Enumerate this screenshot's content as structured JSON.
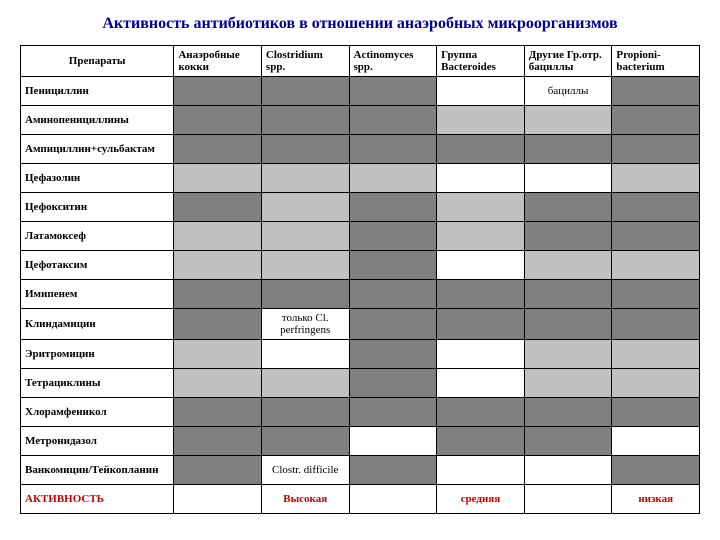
{
  "title": "Активность антибиотиков в отношении анаэробных микроорганизмов",
  "colors": {
    "dark": "#808080",
    "light": "#c0c0c0",
    "white": "#ffffff",
    "heading": "#000099",
    "activity": "#cc0000"
  },
  "columns": [
    "Препараты",
    "Анаэробные кокки",
    "Clostridium spp.",
    "Actinomyces spp.",
    "Группа Bacteroides",
    "Другие Гр.отр. бациллы",
    "Propioni-bacterium"
  ],
  "rows": [
    {
      "label": "Пенициллин",
      "cells": [
        {
          "c": "dark"
        },
        {
          "c": "dark"
        },
        {
          "c": "dark"
        },
        {
          "c": "white"
        },
        {
          "c": "white",
          "t": "бациллы"
        },
        {
          "c": "dark"
        }
      ]
    },
    {
      "label": "Аминопенициллины",
      "cells": [
        {
          "c": "dark"
        },
        {
          "c": "dark"
        },
        {
          "c": "dark"
        },
        {
          "c": "light"
        },
        {
          "c": "light"
        },
        {
          "c": "dark"
        }
      ]
    },
    {
      "label": "Ампициллин+сульбактам",
      "cells": [
        {
          "c": "dark"
        },
        {
          "c": "dark"
        },
        {
          "c": "dark"
        },
        {
          "c": "dark"
        },
        {
          "c": "dark"
        },
        {
          "c": "dark"
        }
      ]
    },
    {
      "label": "Цефазолин",
      "cells": [
        {
          "c": "light"
        },
        {
          "c": "light"
        },
        {
          "c": "light"
        },
        {
          "c": "white"
        },
        {
          "c": "white"
        },
        {
          "c": "light"
        }
      ]
    },
    {
      "label": "Цефокситин",
      "cells": [
        {
          "c": "dark"
        },
        {
          "c": "light"
        },
        {
          "c": "dark"
        },
        {
          "c": "light"
        },
        {
          "c": "dark"
        },
        {
          "c": "dark"
        }
      ]
    },
    {
      "label": "Латамоксеф",
      "cells": [
        {
          "c": "light"
        },
        {
          "c": "light"
        },
        {
          "c": "dark"
        },
        {
          "c": "light"
        },
        {
          "c": "dark"
        },
        {
          "c": "dark"
        }
      ]
    },
    {
      "label": "Цефотаксим",
      "cells": [
        {
          "c": "light"
        },
        {
          "c": "light"
        },
        {
          "c": "dark"
        },
        {
          "c": "white"
        },
        {
          "c": "light"
        },
        {
          "c": "light"
        }
      ]
    },
    {
      "label": "Имипенем",
      "cells": [
        {
          "c": "dark"
        },
        {
          "c": "dark"
        },
        {
          "c": "dark"
        },
        {
          "c": "dark"
        },
        {
          "c": "dark"
        },
        {
          "c": "dark"
        }
      ]
    },
    {
      "label": "Клиндамицин",
      "cells": [
        {
          "c": "dark"
        },
        {
          "c": "white",
          "t": "только Cl. perfringens"
        },
        {
          "c": "dark"
        },
        {
          "c": "dark"
        },
        {
          "c": "dark"
        },
        {
          "c": "dark"
        }
      ]
    },
    {
      "label": "Эритромицин",
      "cells": [
        {
          "c": "light"
        },
        {
          "c": "white"
        },
        {
          "c": "dark"
        },
        {
          "c": "white"
        },
        {
          "c": "light"
        },
        {
          "c": "light"
        }
      ]
    },
    {
      "label": "Тетрациклины",
      "cells": [
        {
          "c": "light"
        },
        {
          "c": "light"
        },
        {
          "c": "dark"
        },
        {
          "c": "white"
        },
        {
          "c": "light"
        },
        {
          "c": "light"
        }
      ]
    },
    {
      "label": "Хлорамфеникол",
      "cells": [
        {
          "c": "dark"
        },
        {
          "c": "dark"
        },
        {
          "c": "dark"
        },
        {
          "c": "dark"
        },
        {
          "c": "dark"
        },
        {
          "c": "dark"
        }
      ]
    },
    {
      "label": "Метронидазол",
      "cells": [
        {
          "c": "dark"
        },
        {
          "c": "dark"
        },
        {
          "c": "white"
        },
        {
          "c": "dark"
        },
        {
          "c": "dark"
        },
        {
          "c": "white"
        }
      ]
    },
    {
      "label": "Ванкомицин/Тейкопланин",
      "cells": [
        {
          "c": "dark"
        },
        {
          "c": "white",
          "t": "Clostr. difficile"
        },
        {
          "c": "dark"
        },
        {
          "c": "white"
        },
        {
          "c": "white"
        },
        {
          "c": "dark"
        }
      ]
    }
  ],
  "activity_row": {
    "label": "АКТИВНОСТЬ",
    "cells": [
      "",
      "Высокая",
      "",
      "средняя",
      "",
      "низкая"
    ]
  }
}
